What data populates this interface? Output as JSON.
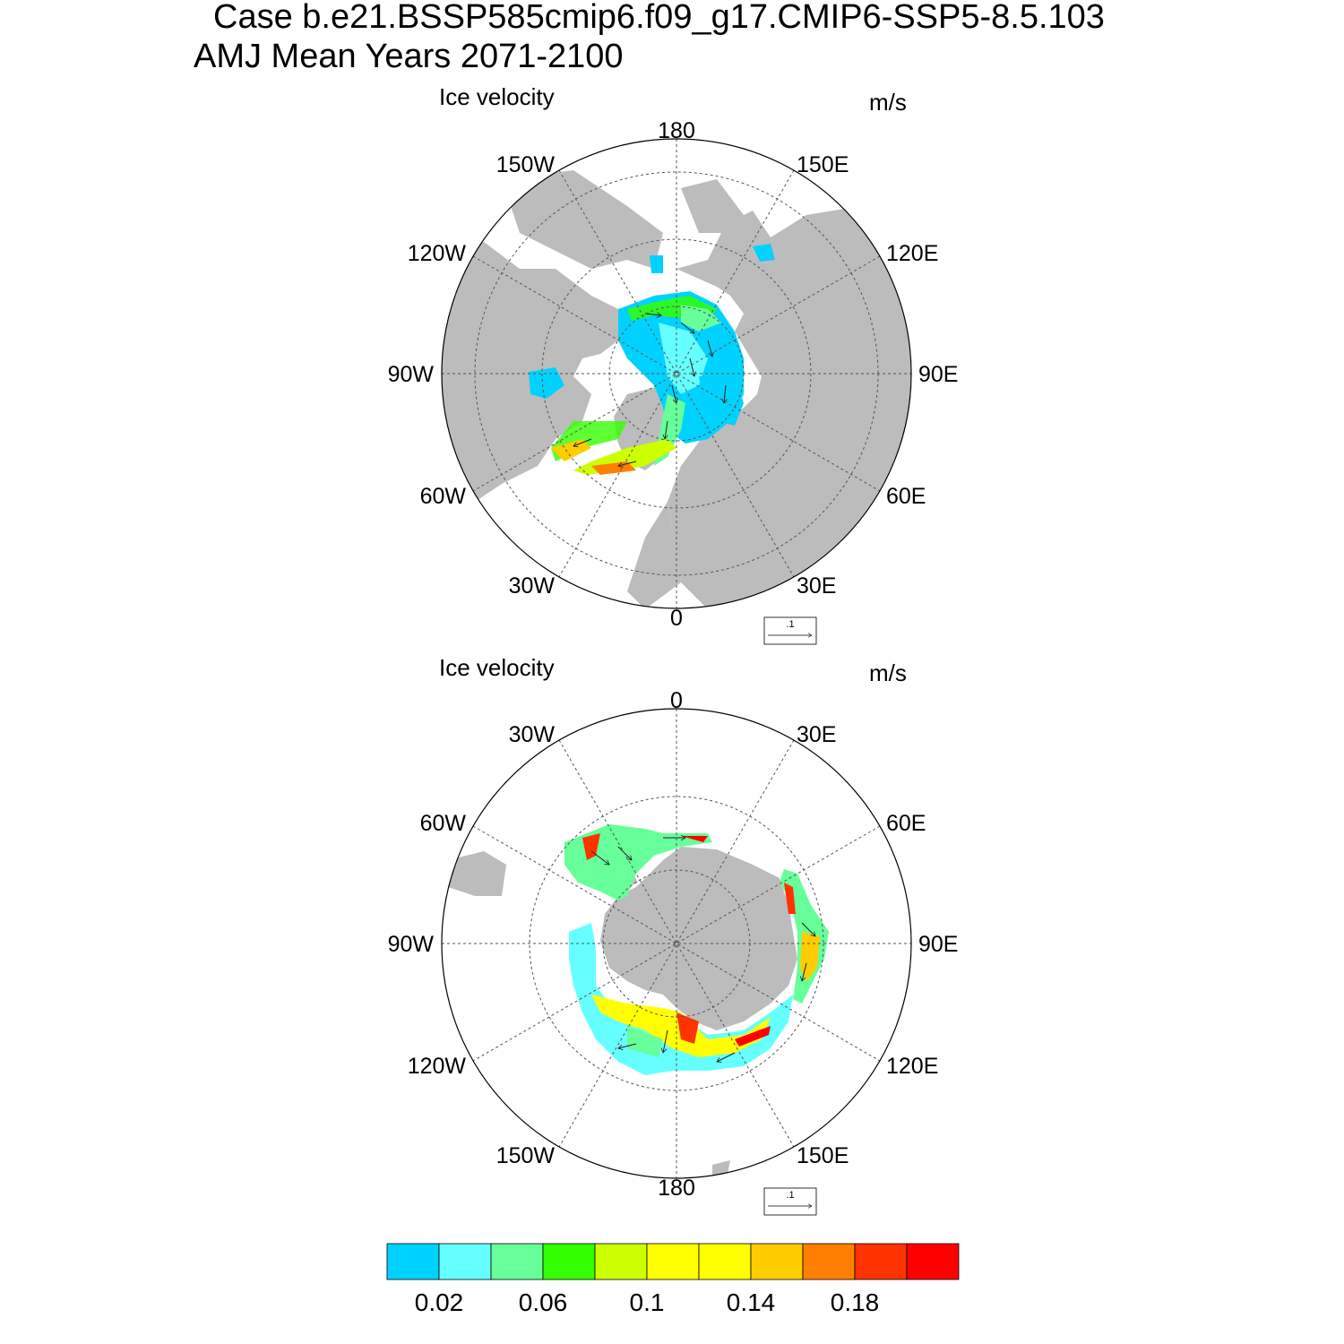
{
  "title": {
    "line1": "Case b.e21.BSSP585cmip6.f09_g17.CMIP6-SSP5-8.5.103",
    "line2": "AMJ Mean   Years 2071-2100"
  },
  "panels": [
    {
      "id": "north",
      "label": "Ice velocity",
      "units": "m/s",
      "hemisphere": "Northern Hemisphere polar stereographic",
      "lon_labels": {
        "top": "180",
        "top_left": "150W",
        "top_right": "150E",
        "upper_left": "120W",
        "upper_right": "120E",
        "left": "90W",
        "right": "90E",
        "lower_left": "60W",
        "lower_right": "60E",
        "bottom_left": "30W",
        "bottom_right": "30E",
        "bottom": "0"
      },
      "reference_vector": ".1"
    },
    {
      "id": "south",
      "label": "Ice velocity",
      "units": "m/s",
      "hemisphere": "Southern Hemisphere polar stereographic",
      "lon_labels": {
        "top": "0",
        "top_left": "30W",
        "top_right": "30E",
        "upper_left": "60W",
        "upper_right": "60E",
        "left": "90W",
        "right": "90E",
        "lower_left": "120W",
        "lower_right": "120E",
        "bottom_left": "150W",
        "bottom_right": "150E",
        "bottom": "180"
      },
      "reference_vector": ".1"
    }
  ],
  "colorbar": {
    "colors": [
      "#00d2ff",
      "#66ffff",
      "#66ff99",
      "#33ff00",
      "#ccff00",
      "#ffff00",
      "#ffff00",
      "#ffcc00",
      "#ff8000",
      "#ff3300",
      "#ff0000"
    ],
    "tick_labels": [
      "0.02",
      "0.06",
      "0.1",
      "0.14",
      "0.18"
    ]
  },
  "map_colors": {
    "land": "#bcbcbc",
    "grid": "#555555"
  }
}
